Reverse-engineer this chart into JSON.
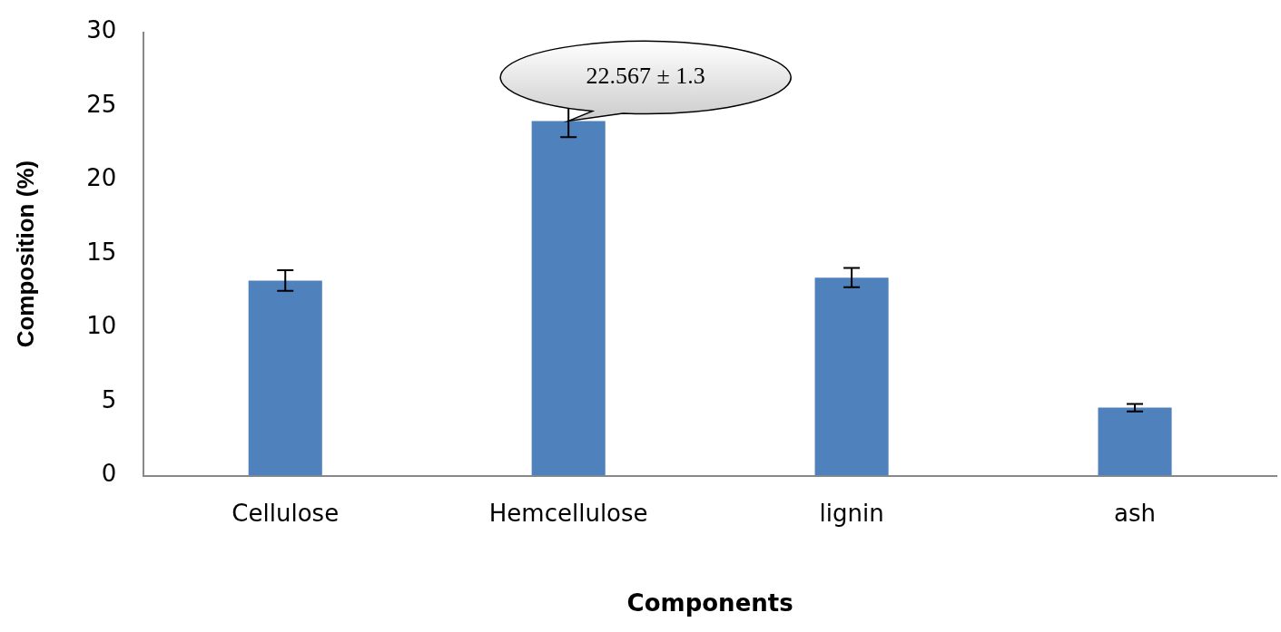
{
  "chart_data": {
    "type": "bar",
    "xlabel": "Components",
    "ylabel": "Composition (%)",
    "categories": [
      "Cellulose",
      "Hemcellulose",
      "lignin",
      "ash"
    ],
    "values": [
      13.2,
      24.0,
      13.4,
      4.6
    ],
    "errors": [
      0.7,
      1.1,
      0.65,
      0.25
    ],
    "color": "#4f81bd",
    "ylim": [
      0,
      30
    ],
    "yticks": [
      0,
      5,
      10,
      15,
      20,
      25,
      30
    ],
    "grid": false,
    "legend": false,
    "annotations": [
      {
        "text": "22.567 ± 1.3",
        "x": "Hemcellulose",
        "y": 24.0
      }
    ]
  }
}
